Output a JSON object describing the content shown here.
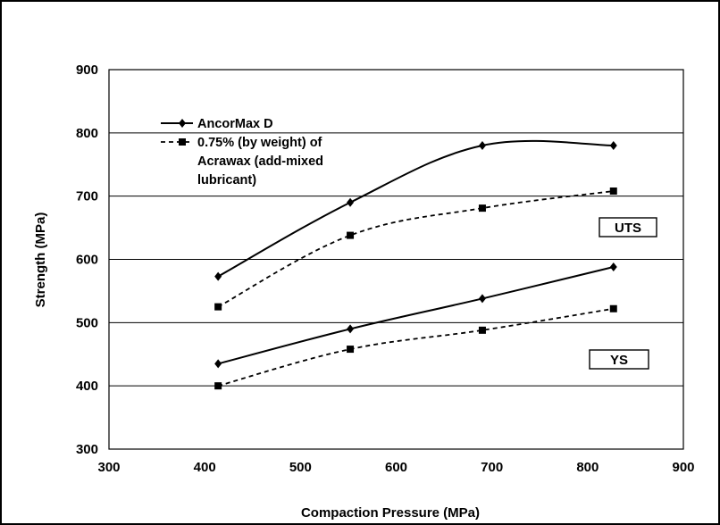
{
  "chart_data": {
    "type": "line",
    "xlabel": "Compaction Pressure (MPa)",
    "ylabel": "Strength (MPa)",
    "xlim": [
      300,
      900
    ],
    "ylim": [
      300,
      900
    ],
    "x_ticks": [
      300,
      400,
      500,
      600,
      700,
      800,
      900
    ],
    "y_ticks": [
      300,
      400,
      500,
      600,
      700,
      800,
      900
    ],
    "grid": "horizontal",
    "legend_placement": "top-left",
    "series": [
      {
        "name": "AncorMax D",
        "group": "UTS",
        "style": "solid",
        "marker": "diamond",
        "color": "#000000",
        "x": [
          414,
          552,
          690,
          827
        ],
        "y": [
          573,
          690,
          780,
          780
        ]
      },
      {
        "name": "0.75% (by weight) of Acrawax (add-mixed lubricant)",
        "group": "UTS",
        "style": "dashed",
        "marker": "square",
        "color": "#000000",
        "x": [
          414,
          552,
          690,
          827
        ],
        "y": [
          525,
          638,
          681,
          708
        ]
      },
      {
        "name": "AncorMax D",
        "group": "YS",
        "style": "solid",
        "marker": "diamond",
        "color": "#000000",
        "x": [
          414,
          552,
          690,
          827
        ],
        "y": [
          435,
          490,
          538,
          588
        ]
      },
      {
        "name": "0.75% (by weight) of Acrawax (add-mixed lubricant)",
        "group": "YS",
        "style": "dashed",
        "marker": "square",
        "color": "#000000",
        "x": [
          414,
          552,
          690,
          827
        ],
        "y": [
          400,
          458,
          488,
          522
        ]
      }
    ],
    "legend": [
      {
        "style": "solid",
        "marker": "diamond",
        "lines": [
          "AncorMax D"
        ]
      },
      {
        "style": "dashed",
        "marker": "square",
        "lines": [
          "0.75% (by weight) of",
          "Acrawax (add-mixed",
          "lubricant)"
        ]
      }
    ],
    "annotations": [
      "UTS",
      "YS"
    ]
  }
}
